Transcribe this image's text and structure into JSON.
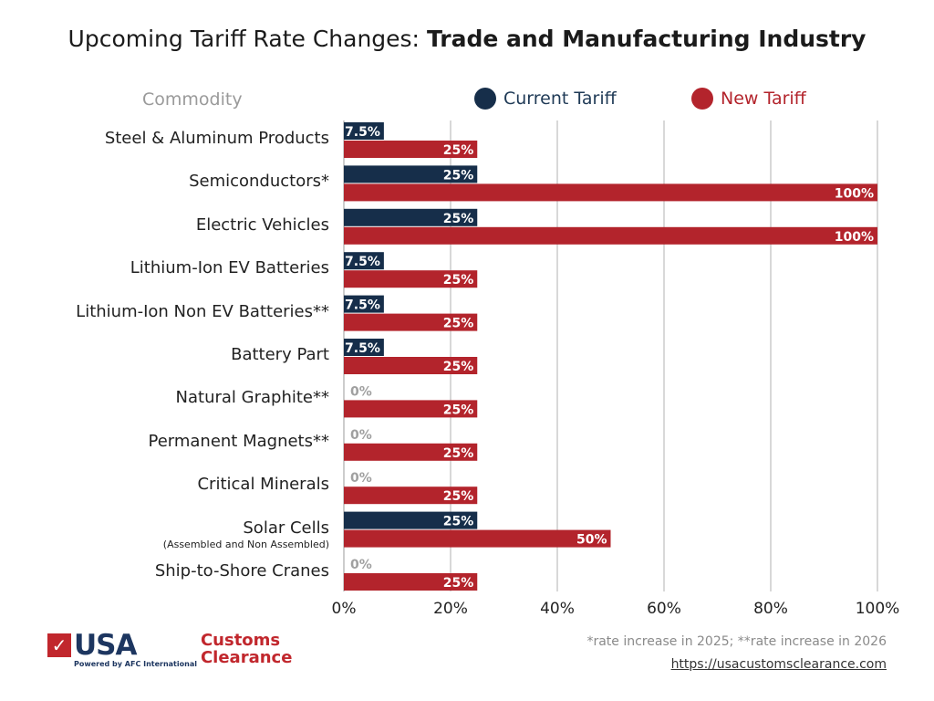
{
  "title": {
    "prefix": "Upcoming Tariff Rate Changes: ",
    "bold": "Trade and Manufacturing Industry"
  },
  "legend": {
    "header": "Commodity",
    "current": "Current Tariff",
    "new": "New Tariff"
  },
  "colors": {
    "current": "#162e4a",
    "new": "#b3242c",
    "grid": "#cccccc",
    "zero_label": "#a0a0a0"
  },
  "footer": {
    "note": "*rate increase in 2025; **rate increase in 2026",
    "url": "https://usacustomsclearance.com",
    "logo": {
      "usa": "USA",
      "customs": "Customs",
      "clearance": "Clearance",
      "powered": "Powered by AFC International"
    }
  },
  "chart_data": {
    "type": "bar",
    "orientation": "horizontal",
    "title": "Upcoming Tariff Rate Changes: Trade and Manufacturing Industry",
    "xlabel": "",
    "ylabel": "Commodity",
    "xlim": [
      0,
      100
    ],
    "xticks": [
      "0%",
      "20%",
      "40%",
      "60%",
      "80%",
      "100%"
    ],
    "grid": true,
    "legend_position": "top",
    "categories": [
      "Steel & Aluminum Products",
      "Semiconductors*",
      "Electric Vehicles",
      "Lithium-Ion EV Batteries",
      "Lithium-Ion Non EV Batteries**",
      "Battery Part",
      "Natural Graphite**",
      "Permanent Magnets**",
      "Critical Minerals",
      "Solar Cells",
      "Ship-to-Shore Cranes"
    ],
    "category_subtitles": [
      "",
      "",
      "",
      "",
      "",
      "",
      "",
      "",
      "",
      "(Assembled and Non Assembled)",
      ""
    ],
    "series": [
      {
        "name": "Current Tariff",
        "values": [
          7.5,
          25,
          25,
          7.5,
          7.5,
          7.5,
          0,
          0,
          0,
          25,
          0
        ],
        "labels": [
          "7.5%",
          "25%",
          "25%",
          "7.5%",
          "7.5%",
          "7.5%",
          "0%",
          "0%",
          "0%",
          "25%",
          "0%"
        ]
      },
      {
        "name": "New Tariff",
        "values": [
          25,
          100,
          100,
          25,
          25,
          25,
          25,
          25,
          25,
          50,
          25
        ],
        "labels": [
          "25%",
          "100%",
          "100%",
          "25%",
          "25%",
          "25%",
          "25%",
          "25%",
          "25%",
          "50%",
          "25%"
        ]
      }
    ]
  }
}
